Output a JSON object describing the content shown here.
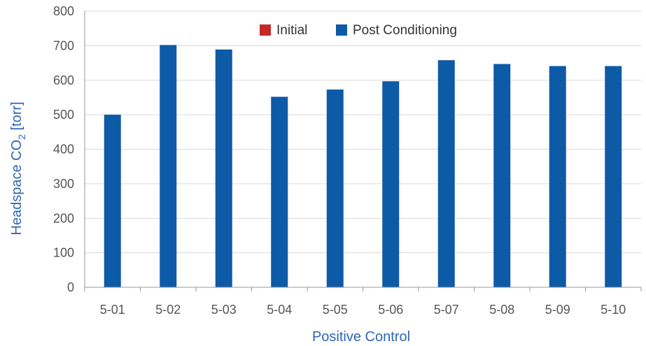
{
  "chart_data": {
    "type": "bar",
    "title": "",
    "xlabel": "Positive Control",
    "ylabel": "Headspace CO",
    "ylabel_subscript": "2",
    "ylabel_unit": " [torr]",
    "categories": [
      "5-01",
      "5-02",
      "5-03",
      "5-04",
      "5-05",
      "5-06",
      "5-07",
      "5-08",
      "5-09",
      "5-10"
    ],
    "series": [
      {
        "name": "Initial",
        "color": "#c62828",
        "values": [
          0,
          0,
          0,
          0,
          0,
          0,
          0,
          0,
          0,
          0
        ]
      },
      {
        "name": "Post Conditioning",
        "color": "#0d5aa7",
        "values": [
          500,
          702,
          689,
          552,
          573,
          597,
          658,
          647,
          641,
          641
        ]
      }
    ],
    "ylim": [
      0,
      800
    ],
    "yticks": [
      0,
      100,
      200,
      300,
      400,
      500,
      600,
      700,
      800
    ],
    "ytick_labels": [
      "0",
      "100",
      "200",
      "300",
      "400",
      "500",
      "600",
      "700",
      "800"
    ],
    "grid": "horizontal",
    "legend_position": "top-center",
    "colors": {
      "axis_title": "#2e67b1",
      "gridline": "#d9d9d9",
      "axis_line": "#999999",
      "tick_text": "#555555"
    }
  }
}
